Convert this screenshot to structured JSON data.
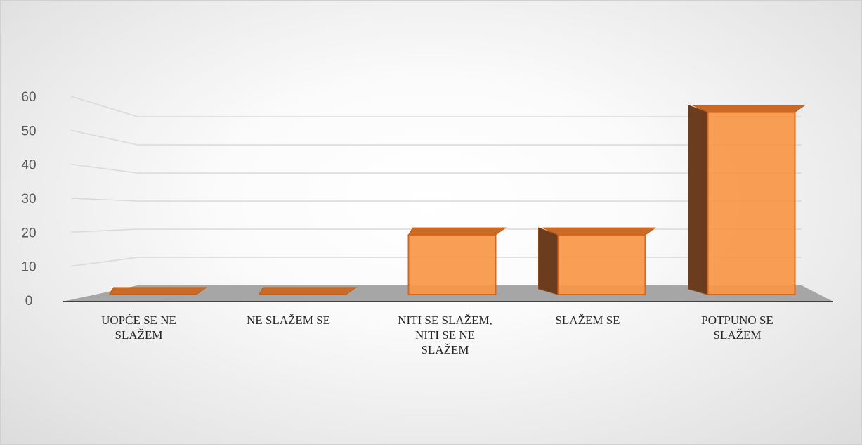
{
  "chart_data": {
    "type": "bar3d",
    "categories": [
      "UOPĆE SE NE SLAŽEM",
      "NE SLAŽEM SE",
      "NITI SE SLAŽEM, NITI SE NE SLAŽEM",
      "SLAŽEM SE",
      "POTPUNO SE SLAŽEM"
    ],
    "values": [
      0,
      0,
      18,
      18,
      55
    ],
    "color": "#f79646",
    "ylim": [
      0,
      60
    ],
    "yticks": [
      0,
      10,
      20,
      30,
      40,
      50,
      60
    ],
    "grid": true
  }
}
